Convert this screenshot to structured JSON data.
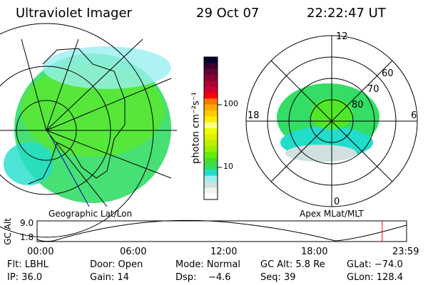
{
  "header": {
    "title": "Ultraviolet Imager",
    "date": "29 Oct 07",
    "time": "22:22:47 UT"
  },
  "left_panel": {
    "label": "Geographic Lat/Lon"
  },
  "right_panel": {
    "label": "Apex MLat/MLT",
    "mlt_labels": [
      "12",
      "6",
      "0",
      "18"
    ],
    "lat_labels": [
      "60",
      "70",
      "80"
    ]
  },
  "colorbar": {
    "label": "photon cm⁻²s⁻¹",
    "ticks": [
      "100",
      "10"
    ],
    "colors": [
      "#000033",
      "#3a0030",
      "#660033",
      "#880033",
      "#aa0033",
      "#cc0033",
      "#ff0000",
      "#ff7700",
      "#ffaa00",
      "#ffcc00",
      "#ffee00",
      "#ffff88",
      "#f0ff00",
      "#ddf000",
      "#bbee00",
      "#99ee00",
      "#66ee00",
      "#44dd33",
      "#33dd66",
      "#22ddcc",
      "#99f0f0",
      "#d0e0e0",
      "#eef4ee",
      "#ffffff"
    ]
  },
  "timeline": {
    "ylabel": "GC Alt",
    "yticks": [
      "9.0",
      "1.8"
    ],
    "xticks": [
      "00:00",
      "06:00",
      "12:00",
      "18:00",
      "23:59"
    ],
    "current_time_fraction": 0.934,
    "marker_color": "#ff0000"
  },
  "status": {
    "filter": "Flt: LBHL",
    "door": "Door: Open",
    "mode": "Mode: Normal",
    "gc_alt": "GC Alt: 5.8 Re",
    "glat": "GLat: −74.0",
    "ip": "IP: 36.0",
    "gain": "Gain: 14",
    "dsp": "Dsp:    −4.6",
    "seq": "Seq: 39",
    "glon": "GLon: 128.4"
  }
}
